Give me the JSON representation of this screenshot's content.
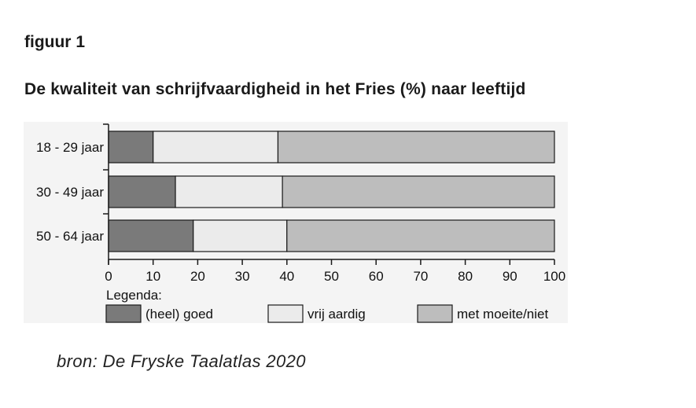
{
  "figure_label": "figuur 1",
  "source": "bron: De Fryske Taalatlas 2020",
  "chart_data": {
    "type": "bar",
    "orientation": "horizontal",
    "stacked": true,
    "title": "De kwaliteit van schrijfvaardigheid in het Fries (%) naar leeftijd",
    "categories": [
      "18 - 29 jaar",
      "30 - 49 jaar",
      "50 - 64 jaar"
    ],
    "series": [
      {
        "name": "(heel) goed",
        "values": [
          10,
          15,
          19
        ],
        "color": "#7a7a7a"
      },
      {
        "name": "vrij aardig",
        "values": [
          28,
          24,
          21
        ],
        "color": "#ebebeb"
      },
      {
        "name": "met moeite/niet",
        "values": [
          62,
          61,
          60
        ],
        "color": "#bdbdbd"
      }
    ],
    "xlim": [
      0,
      100
    ],
    "xticks": [
      "0",
      "10",
      "20",
      "30",
      "40",
      "50",
      "60",
      "70",
      "80",
      "90",
      "100"
    ],
    "legend_title": "Legenda:",
    "legend_position": "bottom",
    "grid": false
  }
}
